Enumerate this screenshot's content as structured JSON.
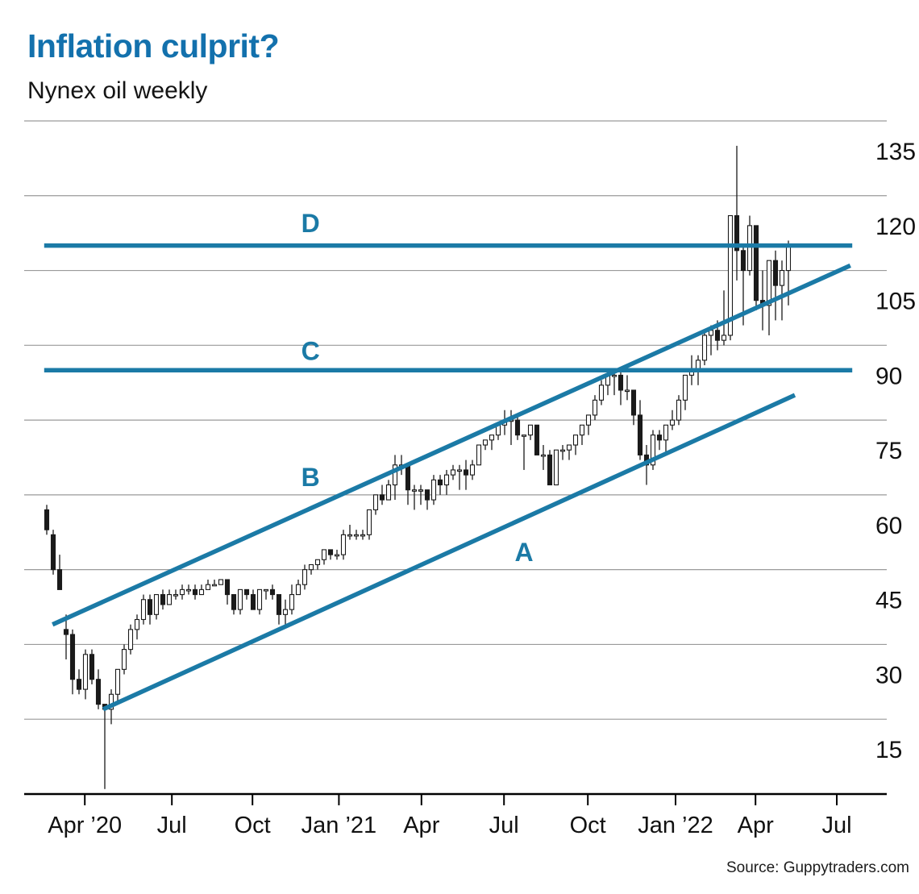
{
  "header": {
    "title": "Inflation culprit?",
    "subtitle": "Nynex oil weekly"
  },
  "footer": {
    "source": "Source: Guppytraders.com"
  },
  "colors": {
    "title_blue": "#1371ad",
    "accent_blue": "#1b7aa6",
    "grid_gray": "#9a9a9a",
    "axis_black": "#000000",
    "bar_down_fill": "#1a1a1a",
    "bar_up_fill": "#ffffff",
    "bar_stroke": "#1a1a1a"
  },
  "chart_data": {
    "type": "candlestick",
    "title": "Inflation culprit?",
    "subtitle": "Nynex oil weekly",
    "frequency": "weekly",
    "y_axis": {
      "side": "right",
      "min": 0,
      "max": 135,
      "ticks": [
        135,
        120,
        105,
        90,
        75,
        60,
        45,
        30,
        15
      ],
      "grid": true
    },
    "x_axis": {
      "tick_labels": [
        "Apr ’20",
        "Jul",
        "Oct",
        "Jan ’21",
        "Apr",
        "Jul",
        "Oct",
        "Jan ’22",
        "Apr",
        "Jul"
      ],
      "tick_weeks": [
        5.9,
        19.4,
        31.9,
        45.3,
        58.1,
        70.9,
        83.9,
        97.5,
        109.9,
        122.5
      ]
    },
    "trendlines": [
      {
        "label": "A",
        "kind": "channel-support",
        "w1": 8.75,
        "v1": 17,
        "w2": 116,
        "v2": 80,
        "label_w": 74,
        "label_v": 48.5
      },
      {
        "label": "B",
        "kind": "channel-resistance",
        "w1": 0.9,
        "v1": 34,
        "w2": 124.6,
        "v2": 106,
        "label_w": 40.9,
        "label_v": 63.5
      },
      {
        "label": "C",
        "kind": "horizontal-level",
        "w1": -0.4,
        "v1": 85,
        "w2": 124.9,
        "v2": 85,
        "label_w": 40.9,
        "label_v": 88.8
      },
      {
        "label": "D",
        "kind": "horizontal-level",
        "w1": -0.4,
        "v1": 110,
        "w2": 124.9,
        "v2": 110,
        "label_w": 40.9,
        "label_v": 114.5
      }
    ],
    "bars_ohlc": [
      [
        57,
        58,
        52,
        53
      ],
      [
        52,
        53,
        44,
        45
      ],
      [
        45,
        48,
        41,
        41
      ],
      [
        33,
        36,
        27,
        32
      ],
      [
        32,
        33,
        20,
        23
      ],
      [
        23,
        25,
        20,
        21
      ],
      [
        21,
        29,
        19,
        28
      ],
      [
        28,
        29,
        22,
        23
      ],
      [
        23,
        25,
        17,
        18
      ],
      [
        18,
        18,
        1,
        17
      ],
      [
        17,
        21,
        14,
        20
      ],
      [
        20,
        25,
        18,
        25
      ],
      [
        25,
        30,
        24,
        29
      ],
      [
        29,
        34,
        28,
        33
      ],
      [
        33,
        36,
        31,
        35
      ],
      [
        35,
        40,
        34,
        39
      ],
      [
        39,
        40,
        34,
        36
      ],
      [
        36,
        40,
        35,
        40
      ],
      [
        40,
        41,
        37,
        38
      ],
      [
        38,
        41,
        38,
        40
      ],
      [
        40,
        41,
        39,
        40
      ],
      [
        40,
        42,
        39,
        41
      ],
      [
        41,
        42,
        40,
        41
      ],
      [
        41,
        42,
        39,
        40
      ],
      [
        40,
        42,
        40,
        41
      ],
      [
        41,
        43,
        41,
        42
      ],
      [
        42,
        43,
        42,
        42
      ],
      [
        42,
        43,
        42,
        43
      ],
      [
        43,
        43,
        38,
        40
      ],
      [
        40,
        40,
        36,
        37
      ],
      [
        37,
        41,
        36,
        41
      ],
      [
        41,
        41,
        39,
        40
      ],
      [
        40,
        41,
        37,
        37
      ],
      [
        37,
        41,
        36,
        41
      ],
      [
        41,
        41,
        39,
        41
      ],
      [
        41,
        42,
        39,
        40
      ],
      [
        40,
        40,
        34,
        36
      ],
      [
        36,
        39,
        34,
        37
      ],
      [
        37,
        42,
        36,
        40
      ],
      [
        40,
        43,
        40,
        42
      ],
      [
        42,
        46,
        41,
        45
      ],
      [
        45,
        46,
        44,
        46
      ],
      [
        46,
        47,
        45,
        47
      ],
      [
        47,
        49,
        46,
        49
      ],
      [
        49,
        49,
        47,
        48
      ],
      [
        48,
        49,
        47,
        48
      ],
      [
        48,
        53,
        47,
        52
      ],
      [
        52,
        54,
        51,
        52
      ],
      [
        52,
        53,
        51,
        52
      ],
      [
        52,
        53,
        51,
        52
      ],
      [
        52,
        57,
        51,
        57
      ],
      [
        57,
        60,
        56,
        60
      ],
      [
        60,
        62,
        58,
        59
      ],
      [
        59,
        63,
        59,
        62
      ],
      [
        62,
        68,
        59,
        66
      ],
      [
        66,
        68,
        64,
        66
      ],
      [
        66,
        66,
        58,
        61
      ],
      [
        61,
        62,
        57,
        61
      ],
      [
        61,
        62,
        58,
        61
      ],
      [
        61,
        61,
        57,
        59
      ],
      [
        59,
        64,
        58,
        63
      ],
      [
        63,
        64,
        60,
        62
      ],
      [
        62,
        65,
        60,
        64
      ],
      [
        64,
        66,
        63,
        65
      ],
      [
        65,
        66,
        61,
        65
      ],
      [
        65,
        67,
        61,
        64
      ],
      [
        64,
        67,
        63,
        66
      ],
      [
        66,
        70,
        66,
        70
      ],
      [
        70,
        71,
        69,
        71
      ],
      [
        71,
        72,
        69,
        72
      ],
      [
        72,
        74,
        71,
        74
      ],
      [
        74,
        77,
        72,
        75
      ],
      [
        75,
        77,
        70,
        75
      ],
      [
        75,
        76,
        71,
        72
      ],
      [
        72,
        72,
        65,
        72
      ],
      [
        72,
        74,
        71,
        74
      ],
      [
        74,
        74,
        68,
        68
      ],
      [
        68,
        70,
        65,
        68
      ],
      [
        68,
        69,
        62,
        62
      ],
      [
        62,
        69,
        62,
        69
      ],
      [
        69,
        70,
        67,
        69
      ],
      [
        69,
        70,
        67,
        70
      ],
      [
        70,
        72,
        68,
        72
      ],
      [
        72,
        74,
        70,
        74
      ],
      [
        74,
        76,
        72,
        76
      ],
      [
        76,
        80,
        75,
        79
      ],
      [
        79,
        83,
        78,
        82
      ],
      [
        82,
        85,
        80,
        84
      ],
      [
        84,
        85,
        80,
        84
      ],
      [
        84,
        85,
        78,
        81
      ],
      [
        81,
        84,
        79,
        81
      ],
      [
        81,
        81,
        74,
        76
      ],
      [
        76,
        79,
        67,
        68
      ],
      [
        68,
        70,
        62,
        66
      ],
      [
        66,
        73,
        65,
        72
      ],
      [
        72,
        73,
        69,
        71
      ],
      [
        71,
        74,
        68,
        74
      ],
      [
        74,
        77,
        73,
        75
      ],
      [
        75,
        80,
        74,
        79
      ],
      [
        79,
        84,
        77,
        84
      ],
      [
        84,
        88,
        82,
        85
      ],
      [
        85,
        88,
        82,
        87
      ],
      [
        87,
        93,
        86,
        92
      ],
      [
        92,
        94,
        88,
        93
      ],
      [
        93,
        95,
        89,
        91
      ],
      [
        91,
        101,
        90,
        92
      ],
      [
        92,
        116,
        91,
        116
      ],
      [
        116,
        130,
        103,
        109
      ],
      [
        109,
        110,
        94,
        105
      ],
      [
        105,
        116,
        104,
        114
      ],
      [
        114,
        114,
        97,
        99
      ],
      [
        99,
        105,
        93,
        98
      ],
      [
        98,
        107,
        92,
        107
      ],
      [
        107,
        109,
        95,
        102
      ],
      [
        102,
        107,
        95,
        105
      ],
      [
        105,
        111,
        98,
        110
      ]
    ]
  }
}
